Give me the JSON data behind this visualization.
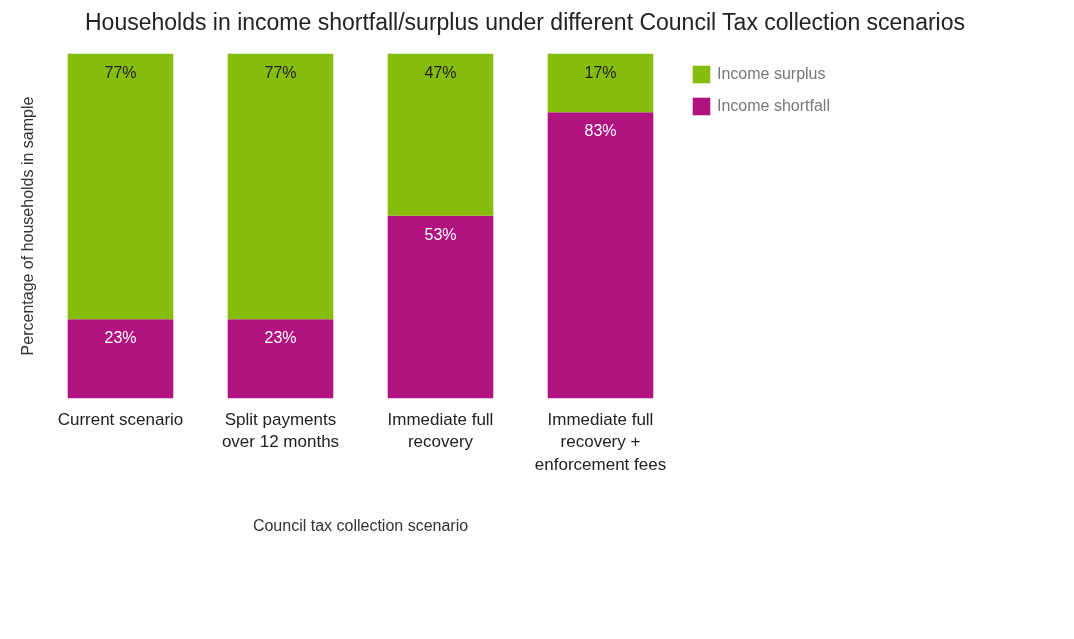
{
  "chart_data": {
    "type": "bar",
    "stacked": true,
    "title": "Households in income shortfall/surplus under different Council Tax collection scenarios",
    "xlabel": "Council tax collection scenario",
    "ylabel": "Percentage of households in sample",
    "categories": [
      "Current scenario",
      "Split payments over 12 months",
      "Immediate full recovery",
      "Immediate full recovery + enforcement fees"
    ],
    "series": [
      {
        "name": "Income shortfall",
        "color": "#b0137f",
        "values": [
          23,
          23,
          53,
          83
        ],
        "value_labels": [
          "23%",
          "23%",
          "53%",
          "83%"
        ]
      },
      {
        "name": "Income surplus",
        "color": "#86bc0c",
        "values": [
          77,
          77,
          47,
          17
        ],
        "value_labels": [
          "77%",
          "77%",
          "47%",
          "17%"
        ]
      }
    ],
    "legend": "top right"
  }
}
